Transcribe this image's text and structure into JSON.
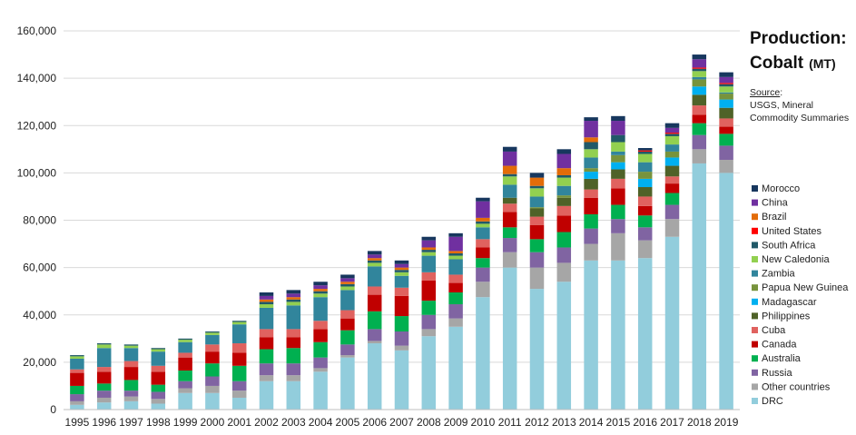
{
  "chart_data": {
    "type": "bar",
    "stacked": true,
    "title": "Production:",
    "title_line2": "Cobalt",
    "unit": "(MT)",
    "source_label": "Source",
    "source_text": [
      "USGS, Mineral",
      "Commodity Summaries"
    ],
    "categories": [
      "1995",
      "1996",
      "1997",
      "1998",
      "1999",
      "2000",
      "2001",
      "2002",
      "2003",
      "2004",
      "2005",
      "2006",
      "2007",
      "2008",
      "2009",
      "2010",
      "2011",
      "2012",
      "2013",
      "2014",
      "2015",
      "2016",
      "2017",
      "2018",
      "2019"
    ],
    "y_ticks": [
      "0",
      "20,000",
      "40,000",
      "60,000",
      "80,000",
      "100,000",
      "120,000",
      "140,000",
      "160,000"
    ],
    "ylim": [
      0,
      160000
    ],
    "grid": true,
    "legend_position": "right",
    "series": [
      {
        "name": "DRC",
        "color": "#92cddc",
        "values": [
          2000,
          3000,
          3500,
          2500,
          7000,
          7000,
          5000,
          12000,
          12000,
          16000,
          22000,
          28000,
          25000,
          31000,
          35000,
          47500,
          60000,
          51000,
          54000,
          63000,
          63000,
          64000,
          73000,
          104000,
          100000
        ]
      },
      {
        "name": "Other countries",
        "color": "#a6a6a6",
        "values": [
          1500,
          2000,
          2000,
          2000,
          2000,
          3000,
          3000,
          2500,
          2500,
          1500,
          1000,
          1000,
          2000,
          3000,
          3500,
          6500,
          6500,
          9000,
          8000,
          7000,
          11500,
          7500,
          7500,
          6000,
          5500
        ]
      },
      {
        "name": "Russia",
        "color": "#8064a2",
        "values": [
          3000,
          3000,
          2500,
          3000,
          3000,
          4000,
          4000,
          5000,
          5000,
          4500,
          4500,
          5000,
          6000,
          6000,
          6000,
          6000,
          6000,
          6500,
          6500,
          6500,
          6000,
          5500,
          6000,
          6000,
          6000
        ]
      },
      {
        "name": "Australia",
        "color": "#00b050",
        "values": [
          3500,
          3000,
          4500,
          3000,
          4500,
          5500,
          6500,
          6000,
          6500,
          6500,
          6000,
          7500,
          6500,
          6000,
          5000,
          4000,
          4500,
          5500,
          6500,
          6000,
          6000,
          5000,
          5000,
          5000,
          5000
        ]
      },
      {
        "name": "Canada",
        "color": "#c00000",
        "values": [
          5500,
          5000,
          5500,
          5500,
          5500,
          5000,
          5500,
          5000,
          4500,
          5500,
          5000,
          7000,
          8500,
          8500,
          4000,
          4500,
          6500,
          6000,
          7000,
          7000,
          7000,
          4000,
          4000,
          3500,
          3000
        ]
      },
      {
        "name": "Cuba",
        "color": "#e0625f",
        "values": [
          1500,
          2000,
          2500,
          2500,
          2000,
          3000,
          4000,
          3500,
          3500,
          3500,
          3500,
          3500,
          3500,
          3500,
          3500,
          3500,
          3500,
          3500,
          4000,
          3500,
          4000,
          4000,
          3000,
          4000,
          3500
        ]
      },
      {
        "name": "Philippines",
        "color": "#4f6228",
        "values": [
          0,
          0,
          0,
          0,
          0,
          0,
          0,
          0,
          0,
          0,
          0,
          0,
          0,
          0,
          0,
          0,
          2500,
          3500,
          3500,
          4500,
          4000,
          4000,
          4500,
          4500,
          4500
        ]
      },
      {
        "name": "Madagascar",
        "color": "#00b0f0",
        "values": [
          0,
          0,
          0,
          0,
          0,
          0,
          0,
          0,
          0,
          0,
          0,
          0,
          0,
          0,
          0,
          0,
          0,
          0,
          0,
          3000,
          3000,
          3500,
          3500,
          3500,
          3500
        ]
      },
      {
        "name": "Papua New Guinea",
        "color": "#77933c",
        "values": [
          0,
          0,
          0,
          0,
          0,
          0,
          0,
          0,
          0,
          0,
          0,
          0,
          0,
          0,
          0,
          0,
          0,
          500,
          1000,
          1500,
          3000,
          3000,
          2500,
          3000,
          2500
        ]
      },
      {
        "name": "Zambia",
        "color": "#31859c",
        "values": [
          4500,
          8000,
          5500,
          6000,
          4500,
          4000,
          8000,
          9000,
          10000,
          10000,
          8500,
          8500,
          5000,
          7000,
          6500,
          5000,
          5500,
          4500,
          4000,
          4500,
          1500,
          4000,
          3000,
          1000,
          500
        ]
      },
      {
        "name": "New Caledonia",
        "color": "#92d050",
        "values": [
          1000,
          1500,
          1000,
          1000,
          1000,
          1000,
          1000,
          1500,
          1500,
          1500,
          1500,
          1500,
          1500,
          1500,
          1500,
          1500,
          3500,
          3500,
          3500,
          3500,
          4000,
          3500,
          3500,
          2500,
          2500
        ]
      },
      {
        "name": "South Africa",
        "color": "#215968",
        "values": [
          500,
          500,
          500,
          500,
          500,
          500,
          500,
          1000,
          1000,
          1000,
          1000,
          1000,
          1000,
          1000,
          1000,
          1000,
          1000,
          1000,
          1000,
          3000,
          3000,
          1000,
          1000,
          1000,
          1000
        ]
      },
      {
        "name": "United States",
        "color": "#ff0000",
        "values": [
          0,
          0,
          0,
          0,
          0,
          0,
          0,
          0,
          0,
          0,
          0,
          0,
          0,
          0,
          0,
          0,
          0,
          0,
          0,
          0,
          0,
          500,
          500,
          500,
          500
        ]
      },
      {
        "name": "Brazil",
        "color": "#e36c09",
        "values": [
          0,
          0,
          0,
          0,
          0,
          0,
          0,
          1000,
          1000,
          1000,
          1000,
          1000,
          1000,
          1000,
          1000,
          1500,
          3500,
          3500,
          3000,
          2000,
          0,
          0,
          0,
          0,
          0
        ]
      },
      {
        "name": "China",
        "color": "#7030a0",
        "values": [
          0,
          0,
          0,
          0,
          0,
          0,
          0,
          1500,
          1500,
          1500,
          1500,
          1500,
          1500,
          3000,
          6000,
          7000,
          6000,
          0,
          6000,
          7000,
          6000,
          0,
          2000,
          3500,
          2500
        ]
      },
      {
        "name": "Morocco",
        "color": "#17375e",
        "values": [
          0,
          0,
          0,
          0,
          0,
          0,
          0,
          1500,
          1500,
          1500,
          1500,
          1500,
          1500,
          1500,
          1500,
          1500,
          2000,
          2000,
          2000,
          1500,
          2000,
          1000,
          2000,
          2000,
          2000
        ]
      }
    ]
  }
}
